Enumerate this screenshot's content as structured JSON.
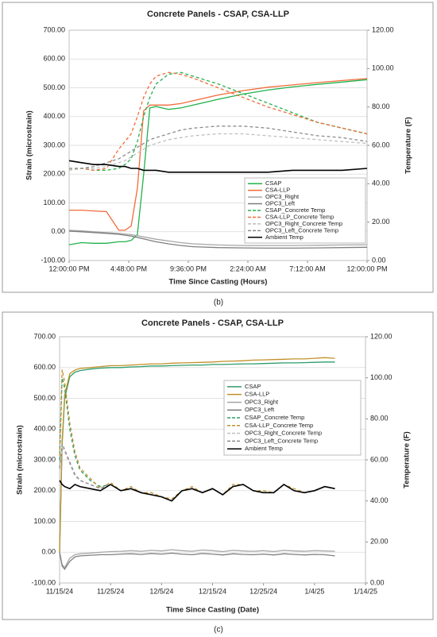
{
  "chart_data": [
    {
      "type": "line",
      "title": "Concrete Panels - CSAP, CSA-LLP",
      "caption": "(b)",
      "xlabel": "Time Since Casting (Hours)",
      "ylabel": "Strain (microstrain)",
      "y2label": "Temperature (F)",
      "x": [
        0,
        1,
        2,
        3,
        4,
        4.5,
        5,
        5.5,
        6,
        6.5,
        7,
        8,
        9,
        10,
        12,
        14,
        16,
        18,
        20,
        22,
        24
      ],
      "xlim": [
        0,
        24
      ],
      "xticks": [
        {
          "value": 0,
          "label": "12:00:00 PM"
        },
        {
          "value": 4.8,
          "label": "4:48:00 PM"
        },
        {
          "value": 9.6,
          "label": "9:36:00 PM"
        },
        {
          "value": 14.4,
          "label": "2:24:00 AM"
        },
        {
          "value": 19.2,
          "label": "7:12:00 AM"
        },
        {
          "value": 24,
          "label": "12:00:00 PM"
        }
      ],
      "ylim": [
        -100,
        700
      ],
      "yticks": [
        {
          "value": -100,
          "label": "-100.00"
        },
        {
          "value": 0,
          "label": "0.00"
        },
        {
          "value": 100,
          "label": "100.00"
        },
        {
          "value": 200,
          "label": "200.00"
        },
        {
          "value": 300,
          "label": "300.00"
        },
        {
          "value": 400,
          "label": "400.00"
        },
        {
          "value": 500,
          "label": "500.00"
        },
        {
          "value": 600,
          "label": "600.00"
        },
        {
          "value": 700,
          "label": "700.00"
        }
      ],
      "y2lim": [
        0,
        120
      ],
      "y2ticks": [
        {
          "value": 0,
          "label": "0.00"
        },
        {
          "value": 20,
          "label": "20.00"
        },
        {
          "value": 40,
          "label": "40.00"
        },
        {
          "value": 60,
          "label": "60.00"
        },
        {
          "value": 80,
          "label": "80.00"
        },
        {
          "value": 100,
          "label": "100.00"
        },
        {
          "value": 120,
          "label": "120.00"
        }
      ],
      "grid": true,
      "legend": "right",
      "series": [
        {
          "name": "CSAP",
          "color": "#22b14c",
          "values": [
            -45,
            -38,
            -40,
            -40,
            -35,
            -35,
            -30,
            -10,
            200,
            430,
            435,
            425,
            430,
            440,
            460,
            478,
            492,
            503,
            512,
            520,
            528
          ]
        },
        {
          "name": "CSA-LLP",
          "color": "#f26b3a",
          "values": [
            75,
            75,
            72,
            70,
            5,
            5,
            20,
            150,
            420,
            440,
            440,
            440,
            445,
            455,
            475,
            490,
            502,
            510,
            518,
            525,
            532
          ]
        },
        {
          "name": "OPC3_Right",
          "color": "#a6a6a6",
          "values": [
            5,
            3,
            0,
            -3,
            -6,
            -8,
            -10,
            -14,
            -18,
            -22,
            -26,
            -32,
            -38,
            -42,
            -46,
            -48,
            -48,
            -48,
            -47,
            -46,
            -45
          ]
        },
        {
          "name": "OPC3_Left",
          "color": "#7f7f7f",
          "values": [
            2,
            0,
            -3,
            -6,
            -9,
            -12,
            -15,
            -20,
            -25,
            -30,
            -35,
            -42,
            -48,
            -52,
            -55,
            -56,
            -57,
            -57,
            -56,
            -55,
            -54
          ]
        },
        {
          "name": "CSAP_Concrete Temp",
          "color": "#22b14c",
          "dashed": true,
          "axis": "y2",
          "values": [
            47,
            48,
            47,
            47,
            48,
            50,
            53,
            62,
            75,
            85,
            92,
            97,
            98,
            96,
            92,
            87,
            82,
            77,
            72,
            69,
            66
          ]
        },
        {
          "name": "CSA-LLP_Concrete Temp",
          "color": "#f26b3a",
          "dashed": true,
          "axis": "y2",
          "values": [
            48,
            48,
            47,
            48,
            58,
            62,
            66,
            75,
            85,
            92,
            96,
            98,
            97,
            95,
            90,
            85,
            80,
            76,
            72,
            69,
            66
          ]
        },
        {
          "name": "OPC3_Right_Concrete Temp",
          "color": "#bfbfbf",
          "dashed": true,
          "axis": "y2",
          "values": [
            47,
            48,
            48,
            49,
            51,
            52,
            54,
            56,
            58,
            60,
            61,
            63,
            64,
            65,
            66,
            66,
            65,
            64,
            63,
            62,
            61
          ]
        },
        {
          "name": "OPC3_Left_Concrete Temp",
          "color": "#8c8c8c",
          "dashed": true,
          "axis": "y2",
          "values": [
            48,
            48,
            49,
            51,
            53,
            55,
            57,
            59,
            61,
            63,
            64,
            66,
            68,
            69,
            70,
            70,
            69,
            67,
            65,
            64,
            62
          ]
        },
        {
          "name": "Ambient Temp",
          "color": "#000000",
          "axis": "y2",
          "values": [
            52,
            51,
            50,
            50,
            49,
            49,
            48,
            48,
            47,
            47,
            47,
            46,
            46,
            46,
            46,
            46,
            46,
            47,
            47,
            47,
            48
          ]
        }
      ]
    },
    {
      "type": "line",
      "title": "Concrete Panels - CSAP, CSA-LLP",
      "caption": "(c)",
      "xlabel": "Time Since Casting (Date)",
      "ylabel": "Strain (microstrain)",
      "y2label": "Temperature (F)",
      "x": [
        0,
        0.5,
        1,
        2,
        3,
        4,
        6,
        8,
        10,
        12,
        14,
        16,
        18,
        20,
        22,
        24,
        26,
        28,
        30,
        32,
        34,
        36,
        38,
        40,
        42,
        44,
        46,
        48,
        50,
        52,
        54
      ],
      "xlim": [
        0,
        60
      ],
      "xticks": [
        {
          "value": 0,
          "label": "11/15/24"
        },
        {
          "value": 10,
          "label": "11/25/24"
        },
        {
          "value": 20,
          "label": "12/5/24"
        },
        {
          "value": 30,
          "label": "12/15/24"
        },
        {
          "value": 40,
          "label": "12/25/24"
        },
        {
          "value": 50,
          "label": "1/4/25"
        },
        {
          "value": 60,
          "label": "1/14/25"
        }
      ],
      "ylim": [
        -100,
        700
      ],
      "yticks": [
        {
          "value": -100,
          "label": "-100.00"
        },
        {
          "value": 0,
          "label": "0.00"
        },
        {
          "value": 100,
          "label": "100.00"
        },
        {
          "value": 200,
          "label": "200.00"
        },
        {
          "value": 300,
          "label": "300.00"
        },
        {
          "value": 400,
          "label": "400.00"
        },
        {
          "value": 500,
          "label": "500.00"
        },
        {
          "value": 600,
          "label": "600.00"
        },
        {
          "value": 700,
          "label": "700.00"
        }
      ],
      "y2lim": [
        0,
        120
      ],
      "y2ticks": [
        {
          "value": 0,
          "label": "0.00"
        },
        {
          "value": 20,
          "label": "20.00"
        },
        {
          "value": 40,
          "label": "40.00"
        },
        {
          "value": 60,
          "label": "60.00"
        },
        {
          "value": 80,
          "label": "80.00"
        },
        {
          "value": 100,
          "label": "100.00"
        },
        {
          "value": 120,
          "label": "120.00"
        }
      ],
      "grid": true,
      "legend": "right",
      "series": [
        {
          "name": "CSAP",
          "color": "#2e9c6a",
          "values": [
            0,
            350,
            500,
            570,
            585,
            590,
            595,
            598,
            600,
            600,
            602,
            603,
            605,
            605,
            606,
            607,
            608,
            608,
            610,
            610,
            611,
            612,
            612,
            613,
            614,
            615,
            615,
            616,
            617,
            618,
            618
          ]
        },
        {
          "name": "CSA-LLP",
          "color": "#c0902a",
          "values": [
            0,
            360,
            510,
            580,
            592,
            597,
            600,
            603,
            606,
            606,
            608,
            610,
            612,
            612,
            614,
            615,
            616,
            617,
            618,
            620,
            621,
            622,
            624,
            625,
            626,
            627,
            628,
            628,
            630,
            632,
            630
          ]
        },
        {
          "name": "OPC3_Right",
          "color": "#a6a6a6",
          "values": [
            0,
            -40,
            -50,
            -20,
            -8,
            -5,
            -3,
            0,
            2,
            3,
            5,
            3,
            6,
            4,
            8,
            5,
            3,
            7,
            5,
            2,
            6,
            4,
            3,
            5,
            2,
            6,
            4,
            3,
            5,
            4,
            3
          ]
        },
        {
          "name": "OPC3_Left",
          "color": "#7f7f7f",
          "values": [
            0,
            -45,
            -55,
            -30,
            -15,
            -12,
            -10,
            -8,
            -8,
            -6,
            -5,
            -7,
            -4,
            -6,
            -3,
            -6,
            -8,
            -4,
            -6,
            -9,
            -5,
            -7,
            -8,
            -6,
            -9,
            -5,
            -7,
            -9,
            -7,
            -8,
            -12
          ]
        },
        {
          "name": "CSAP_Concrete Temp",
          "color": "#2e9c6a",
          "dashed": true,
          "axis": "y2",
          "values": [
            60,
            100,
            95,
            75,
            62,
            55,
            50,
            47,
            48,
            45,
            46,
            44,
            43,
            42,
            40,
            45,
            46,
            44,
            46,
            43,
            47,
            48,
            45,
            44,
            44,
            48,
            45,
            44,
            45,
            47,
            46
          ]
        },
        {
          "name": "CSA-LLP_Concrete Temp",
          "color": "#c0902a",
          "dashed": true,
          "axis": "y2",
          "values": [
            62,
            104,
            98,
            78,
            64,
            56,
            51,
            46,
            49,
            45,
            47,
            44,
            44,
            42,
            41,
            45,
            47,
            44,
            46,
            43,
            48,
            48,
            45,
            45,
            44,
            48,
            46,
            44,
            45,
            47,
            46
          ]
        },
        {
          "name": "OPC3_Right_Concrete Temp",
          "color": "#bfbfbf",
          "dashed": true,
          "axis": "y2",
          "values": [
            55,
            66,
            64,
            58,
            52,
            50,
            48,
            46,
            48,
            45,
            46,
            44,
            43,
            42,
            40,
            45,
            46,
            44,
            46,
            43,
            47,
            48,
            45,
            44,
            44,
            48,
            45,
            44,
            45,
            47,
            46
          ]
        },
        {
          "name": "OPC3_Left_Concrete Temp",
          "color": "#8c8c8c",
          "dashed": true,
          "axis": "y2",
          "values": [
            56,
            68,
            65,
            59,
            53,
            50,
            48,
            46,
            48,
            45,
            46,
            44,
            43,
            42,
            40,
            45,
            46,
            44,
            46,
            43,
            47,
            48,
            45,
            44,
            44,
            48,
            45,
            44,
            45,
            47,
            46
          ]
        },
        {
          "name": "Ambient Temp",
          "color": "#000000",
          "axis": "y2",
          "values": [
            50,
            48,
            47,
            46,
            48,
            47,
            46,
            45,
            48,
            45,
            46,
            44,
            43,
            42,
            40,
            45,
            46,
            44,
            46,
            43,
            47,
            48,
            45,
            44,
            44,
            48,
            45,
            44,
            45,
            47,
            46
          ]
        }
      ]
    }
  ]
}
